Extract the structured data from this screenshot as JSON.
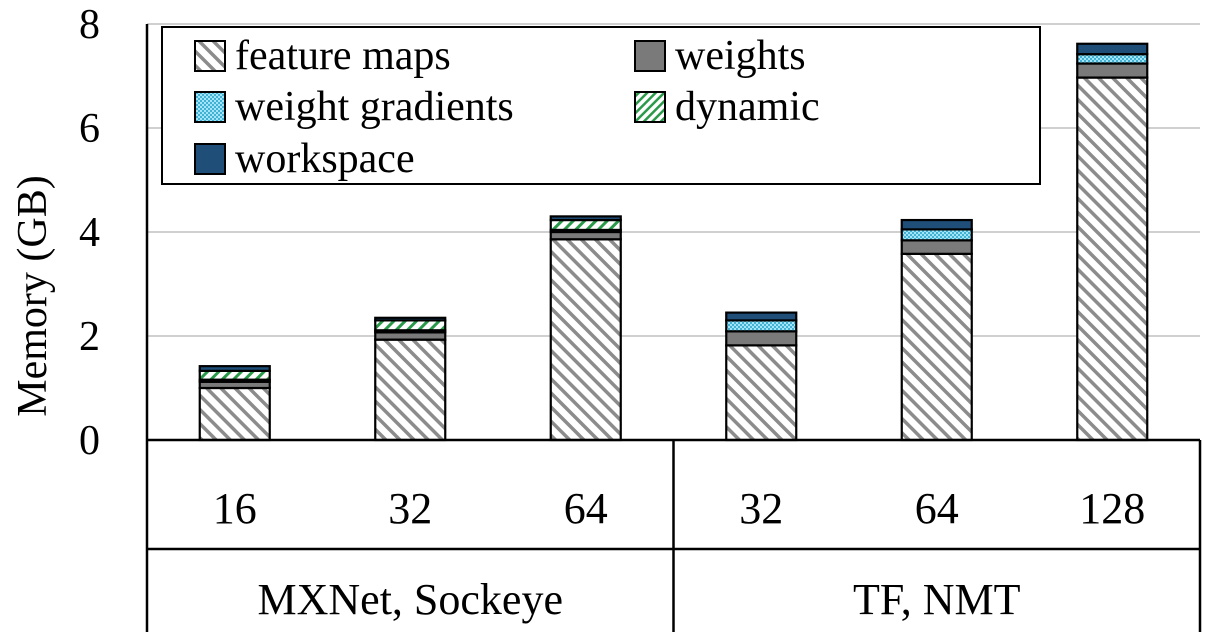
{
  "chart_data": {
    "type": "bar",
    "stacked": true,
    "ylabel": "Memory (GB)",
    "xlabel": "",
    "ylim": [
      0,
      8
    ],
    "yticks": [
      "0",
      "2",
      "4",
      "6",
      "8"
    ],
    "grid": true,
    "legend_position": "top-left",
    "groups": [
      {
        "label": "MXNet, Sockeye",
        "categories": [
          "16",
          "32",
          "64"
        ]
      },
      {
        "label": "TF, NMT",
        "categories": [
          "32",
          "64",
          "128"
        ]
      }
    ],
    "categories": [
      "16",
      "32",
      "64",
      "32",
      "64",
      "128"
    ],
    "series": [
      {
        "name": "feature maps",
        "values": [
          1.0,
          1.93,
          3.86,
          1.82,
          3.58,
          6.97
        ]
      },
      {
        "name": "weights",
        "values": [
          0.12,
          0.14,
          0.14,
          0.27,
          0.26,
          0.27
        ]
      },
      {
        "name": "weight gradients",
        "values": [
          0.04,
          0.04,
          0.04,
          0.21,
          0.21,
          0.18
        ]
      },
      {
        "name": "dynamic",
        "values": [
          0.17,
          0.19,
          0.19,
          0.0,
          0.0,
          0.0
        ]
      },
      {
        "name": "workspace",
        "values": [
          0.09,
          0.05,
          0.07,
          0.15,
          0.18,
          0.2
        ]
      }
    ],
    "legend_order": [
      "feature maps",
      "weights",
      "weight gradients",
      "dynamic",
      "workspace"
    ]
  },
  "colors": {
    "feature maps": "#9a9a9a",
    "weights": "#7a7a7a",
    "weight gradients": "#3cb8d8",
    "dynamic": "#2a9a4a",
    "workspace": "#1f4e79",
    "grid": "#d0d0d0"
  }
}
